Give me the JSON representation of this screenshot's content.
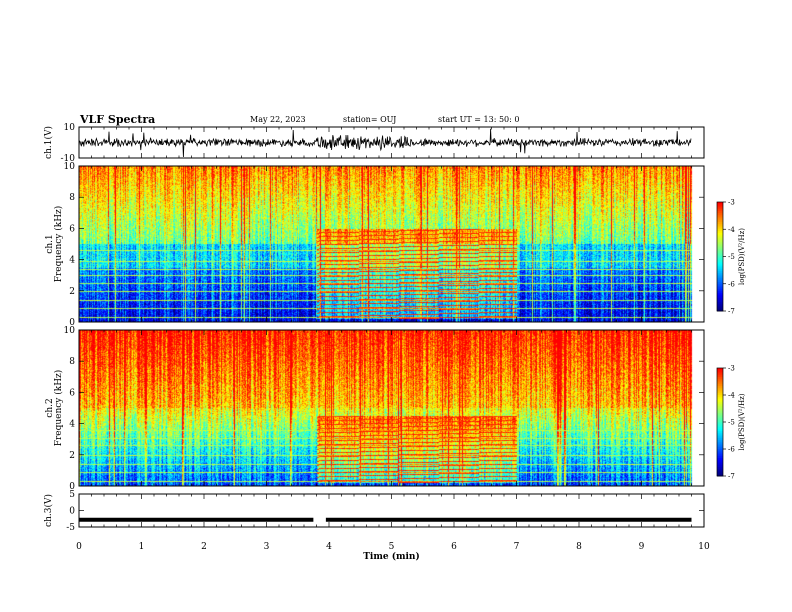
{
  "header": {
    "title": "VLF Spectra",
    "date": "May 22, 2023",
    "station": "station= OUJ",
    "start": "start UT = 13: 50: 0"
  },
  "chart_data": [
    {
      "type": "line",
      "name": "waveform ch.1",
      "ylabel": "ch.1(V)",
      "ylim": [
        -10,
        10
      ],
      "yticks": [
        "10",
        "-10"
      ],
      "xlim": [
        0,
        10
      ],
      "trace_center": 0,
      "trace_amplitude_typical": 3,
      "burst_interval_min": [
        3.8,
        5.3
      ],
      "trace_end_min": 9.8
    },
    {
      "type": "heatmap",
      "name": "spectrogram ch.1",
      "ylabel": "ch.1 Frequency (kHz)",
      "ylim": [
        0,
        10
      ],
      "yticks": [
        "0",
        "2",
        "4",
        "6",
        "8",
        "10"
      ],
      "xlim": [
        0,
        10
      ],
      "data_end_min": 9.8,
      "transmitter_lines_khz": [
        0.3,
        0.9,
        1.4,
        2.0,
        2.5,
        3.0,
        3.4,
        3.9,
        4.6
      ],
      "artificial_band": {
        "t_start_min": 3.8,
        "t_end_min": 7.0,
        "f_low_khz": 0.2,
        "f_high_khz": 6.0
      },
      "colorbar": {
        "label": "log(PSD)(V²/Hz)",
        "range": [
          -7,
          -3
        ],
        "ticks": [
          "-3",
          "-4",
          "-5",
          "-6",
          "-7"
        ]
      }
    },
    {
      "type": "heatmap",
      "name": "spectrogram ch.2",
      "ylabel": "ch.2 Frequency (kHz)",
      "ylim": [
        0,
        10
      ],
      "yticks": [
        "0",
        "2",
        "4",
        "6",
        "8",
        "10"
      ],
      "xlim": [
        0,
        10
      ],
      "data_end_min": 9.8,
      "transmitter_lines_khz": [
        0.3,
        0.9,
        1.4,
        2.0,
        2.6,
        3.1,
        3.6
      ],
      "artificial_band": {
        "t_start_min": 3.8,
        "t_end_min": 7.0,
        "f_low_khz": 0.2,
        "f_high_khz": 4.5
      },
      "colorbar": {
        "label": "log(PSD)(V²/Hz)",
        "range": [
          -7,
          -3
        ],
        "ticks": [
          "-3",
          "-4",
          "-5",
          "-6",
          "-7"
        ]
      }
    },
    {
      "type": "line",
      "name": "waveform ch.3",
      "ylabel": "ch.3(V)",
      "ylim": [
        -5,
        5
      ],
      "yticks": [
        "5",
        "0",
        "-5"
      ],
      "xlim": [
        0,
        10
      ],
      "level": -2.8,
      "gap_min": [
        3.75,
        3.95
      ],
      "trace_end_min": 9.8,
      "xlabel": "Time (min)",
      "xticks": [
        "0",
        "1",
        "2",
        "3",
        "4",
        "5",
        "6",
        "7",
        "8",
        "9",
        "10"
      ]
    }
  ],
  "colors": {
    "colormap": [
      "#00007f",
      "#0000ff",
      "#007fff",
      "#00ffff",
      "#7fff7f",
      "#ffff00",
      "#ff7f00",
      "#ff0000"
    ],
    "trace": "#000000",
    "axis": "#000000"
  }
}
